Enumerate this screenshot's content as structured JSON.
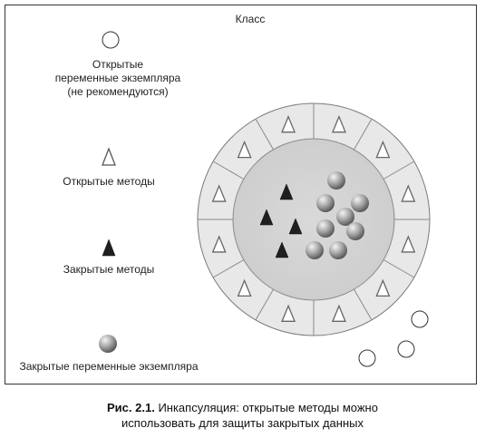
{
  "diagram": {
    "class_label": "Класс",
    "legend": {
      "open_vars_line1": "Открытые",
      "open_vars_line2": "переменные экземпляра",
      "open_vars_line3": "(не рекомендуются)",
      "open_methods": "Открытые методы",
      "closed_methods": "Закрытые методы",
      "closed_vars": "Закрытые переменные экземпляра"
    },
    "caption": {
      "figure_number": "Рис. 2.1.",
      "line1_rest": " Инкапсуляция: открытые методы можно",
      "line2": "использовать для защиты закрытых данных"
    },
    "colors": {
      "outer_ring": "#e6e6e6",
      "inner_core": "#d2d2d2",
      "closed_method": "#222222",
      "open_method_fill": "#ffffff",
      "sphere_light": "#f2f2f2",
      "sphere_dark": "#6e6e6e"
    }
  }
}
